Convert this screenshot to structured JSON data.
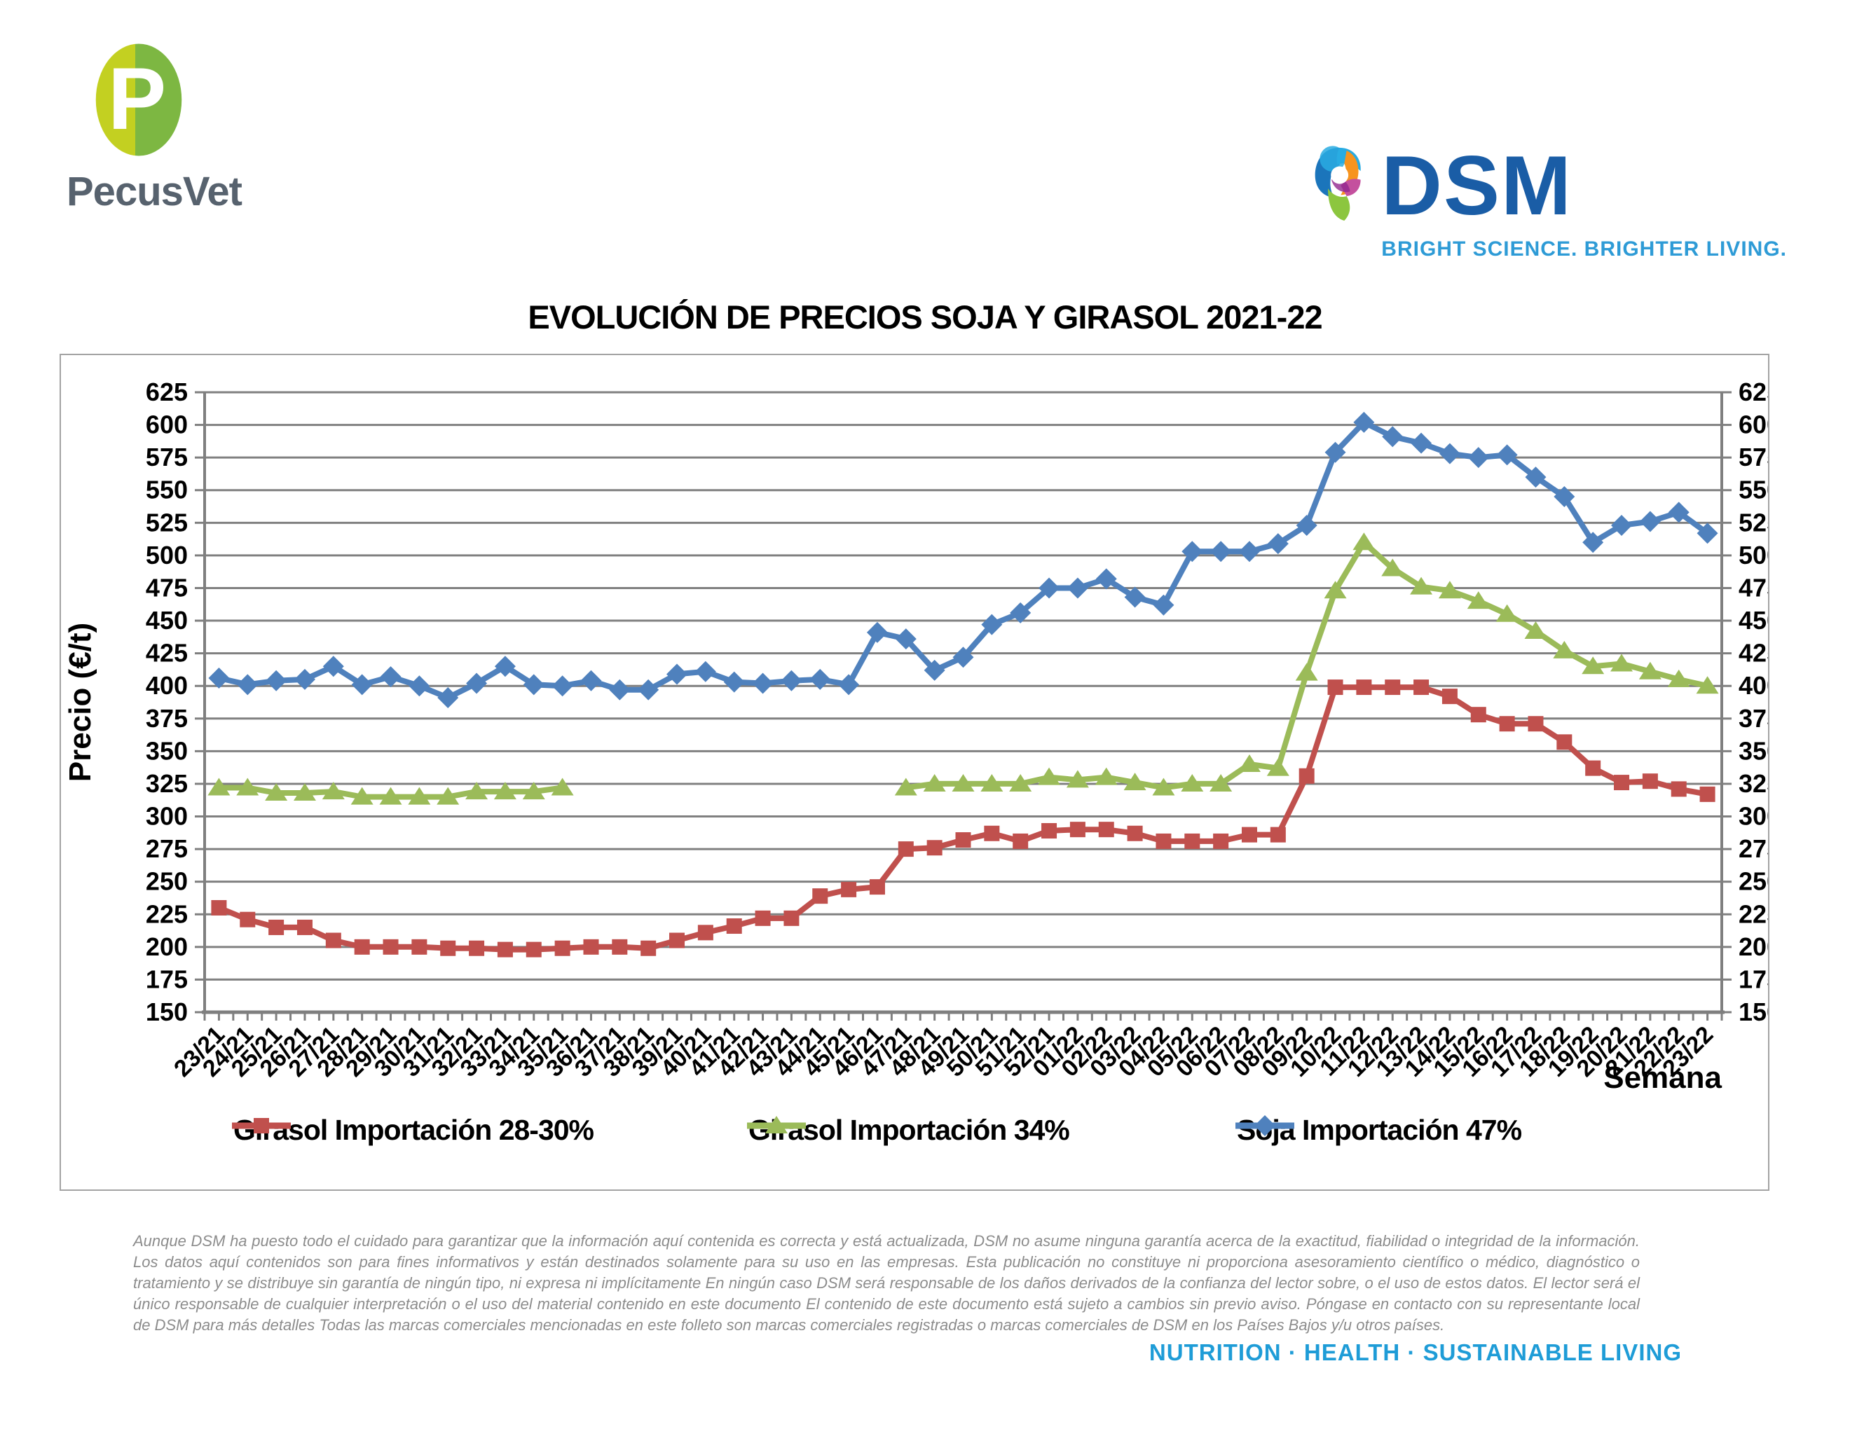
{
  "header": {
    "pecusvet": {
      "wordmark": "PecusVet",
      "colors": {
        "leaf_light": "#C3D021",
        "leaf_dark": "#7DB742",
        "text": "#57626E"
      }
    },
    "dsm": {
      "name": "DSM",
      "tagline": "BRIGHT SCIENCE. BRIGHTER LIVING.",
      "colors": {
        "name_blue": "#1A5DA6",
        "tagline_blue": "#2E9BD6"
      }
    }
  },
  "chart_data": {
    "type": "line",
    "title": "EVOLUCIÓN DE PRECIOS SOJA Y GIRASOL 2021-22",
    "ylabel": "Precio (€/t)",
    "xlabel": "Semana",
    "ylim": [
      150,
      625
    ],
    "ytick_step": 25,
    "grid": true,
    "y_axis_right_mirror": true,
    "legend_position": "bottom",
    "categories": [
      "23/21",
      "24/21",
      "25/21",
      "26/21",
      "27/21",
      "28/21",
      "29/21",
      "30/21",
      "31/21",
      "32/21",
      "33/21",
      "34/21",
      "35/21",
      "36/21",
      "37/21",
      "38/21",
      "39/21",
      "40/21",
      "41/21",
      "42/21",
      "43/21",
      "44/21",
      "45/21",
      "46/21",
      "47/21",
      "48/21",
      "49/21",
      "50/21",
      "51/21",
      "52/21",
      "01/22",
      "02/22",
      "03/22",
      "04/22",
      "05/22",
      "06/22",
      "07/22",
      "08/22",
      "09/22",
      "10/22",
      "11/22",
      "12/22",
      "13/22",
      "14/22",
      "15/22",
      "16/22",
      "17/22",
      "18/22",
      "19/22",
      "20/22",
      "21/22",
      "22/22",
      "23/22"
    ],
    "series": [
      {
        "name": "Girasol Importación 28-30%",
        "color": "#C0504D",
        "marker": "square",
        "values": [
          230,
          221,
          215,
          215,
          205,
          200,
          200,
          200,
          199,
          199,
          198,
          198,
          199,
          200,
          200,
          199,
          205,
          211,
          216,
          222,
          222,
          239,
          244,
          246,
          275,
          276,
          282,
          287,
          281,
          289,
          290,
          290,
          287,
          281,
          281,
          281,
          286,
          286,
          331,
          399,
          399,
          399,
          399,
          392,
          378,
          371,
          371,
          357,
          337,
          326,
          327,
          321,
          317
        ]
      },
      {
        "name": "Girasol Importación 34%",
        "color": "#9BBB59",
        "marker": "triangle",
        "values": [
          322,
          322,
          318,
          318,
          319,
          315,
          315,
          315,
          315,
          319,
          319,
          319,
          322,
          null,
          null,
          null,
          null,
          null,
          null,
          null,
          null,
          null,
          null,
          null,
          322,
          325,
          325,
          325,
          325,
          330,
          328,
          330,
          326,
          322,
          325,
          325,
          340,
          337,
          410,
          473,
          510,
          490,
          476,
          473,
          465,
          455,
          442,
          427,
          415,
          417,
          411,
          405,
          400
        ]
      },
      {
        "name": "Soja Importación 47%",
        "color": "#4F81BD",
        "marker": "diamond",
        "values": [
          406,
          401,
          404,
          405,
          415,
          401,
          407,
          400,
          391,
          402,
          415,
          401,
          400,
          404,
          397,
          397,
          409,
          411,
          403,
          402,
          404,
          405,
          401,
          441,
          436,
          412,
          422,
          447,
          456,
          475,
          475,
          482,
          468,
          462,
          503,
          503,
          503,
          509,
          523,
          579,
          602,
          591,
          586,
          578,
          575,
          577,
          560,
          545,
          510,
          523,
          526,
          533,
          517
        ]
      }
    ]
  },
  "footer": {
    "disclaimer": "Aunque DSM ha puesto todo el cuidado para garantizar que la información aquí contenida es correcta y está actualizada, DSM no asume ninguna garantía acerca de la exactitud, fiabilidad o integridad de la información. Los datos aquí contenidos son para fines informativos y están destinados solamente para su uso en las empresas. Esta publicación no constituye ni proporciona asesoramiento científico o médico, diagnóstico o tratamiento y se distribuye sin garantía de ningún tipo, ni expresa ni implícitamente En ningún caso DSM será responsable de los daños derivados de la confianza del lector sobre, o el uso de estos datos. El lector será el único responsable de cualquier interpretación o el uso del material contenido en este documento El contenido de este documento está sujeto a cambios sin previo aviso. Póngase en contacto con su representante local de DSM para más detalles Todas las marcas comerciales mencionadas en este folleto son marcas comerciales registradas o marcas comerciales de DSM en los Países Bajos y/u otros países.",
    "tagline": "NUTRITION  ·  HEALTH  ·  SUSTAINABLE LIVING"
  }
}
